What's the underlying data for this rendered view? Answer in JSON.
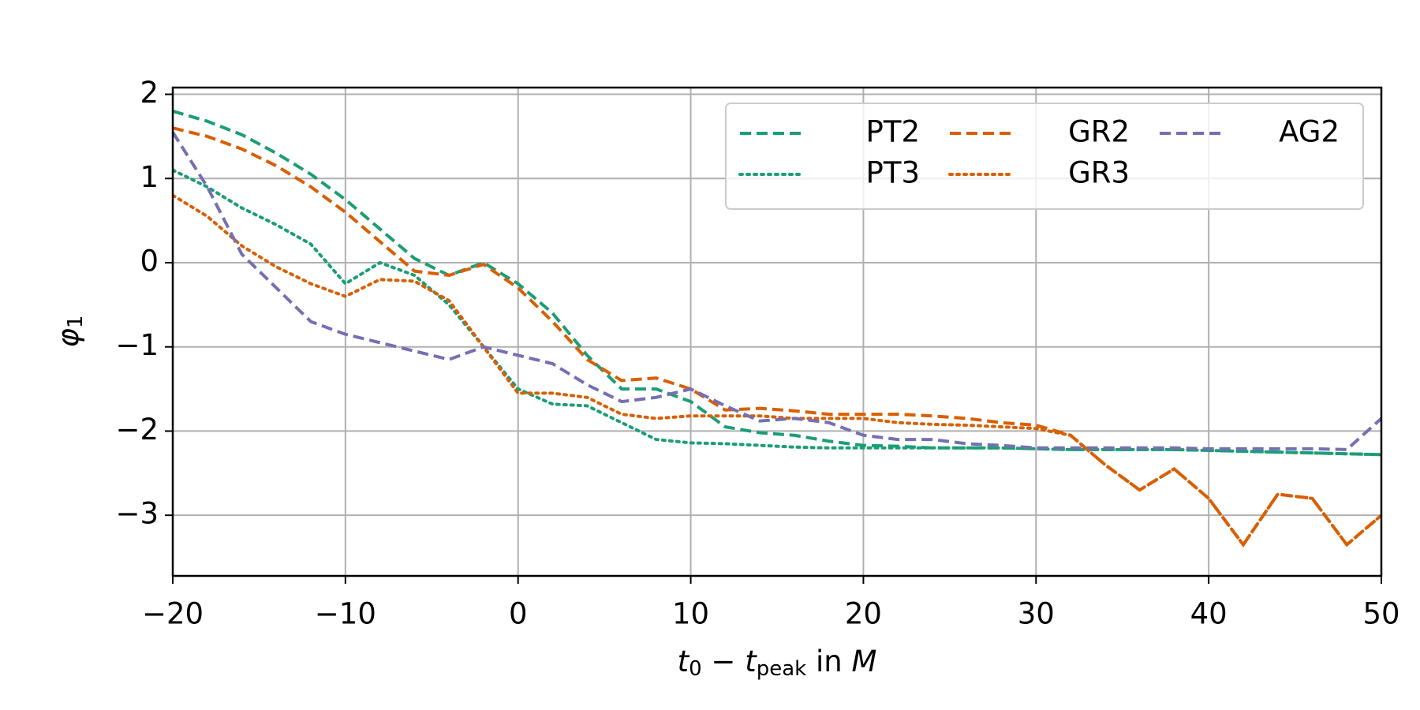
{
  "chart_data": {
    "type": "line",
    "xlabel_parts": [
      "t",
      "0",
      " − ",
      "t",
      "peak",
      " in ",
      "M"
    ],
    "ylabel_parts": [
      "φ",
      "1"
    ],
    "x": [
      -20,
      -18,
      -16,
      -14,
      -12,
      -10,
      -8,
      -6,
      -4,
      -2,
      0,
      2,
      4,
      6,
      8,
      10,
      12,
      14,
      16,
      18,
      20,
      22,
      24,
      26,
      28,
      30,
      32,
      34,
      36,
      38,
      40,
      42,
      44,
      46,
      48,
      50
    ],
    "series": [
      {
        "name": "PT2",
        "color": "#1b9e77",
        "linestyle": "dashed",
        "values": [
          1.8,
          1.68,
          1.52,
          1.3,
          1.05,
          0.75,
          0.4,
          0.05,
          -0.15,
          0.0,
          -0.25,
          -0.6,
          -1.1,
          -1.5,
          -1.5,
          -1.65,
          -1.95,
          -2.02,
          -2.05,
          -2.12,
          -2.17,
          -2.18,
          -2.2,
          -2.2,
          -2.2,
          -2.21,
          -2.22,
          -2.22,
          -2.22,
          -2.22,
          -2.23,
          -2.24,
          -2.25,
          -2.26,
          -2.27,
          -2.28
        ]
      },
      {
        "name": "PT3",
        "color": "#1b9e77",
        "linestyle": "dotted",
        "values": [
          1.1,
          0.9,
          0.65,
          0.45,
          0.22,
          -0.25,
          0.0,
          -0.15,
          -0.5,
          -1.0,
          -1.5,
          -1.68,
          -1.7,
          -1.9,
          -2.1,
          -2.14,
          -2.15,
          -2.17,
          -2.19,
          -2.2,
          -2.2,
          -2.2,
          -2.2,
          -2.2,
          -2.2,
          -2.21,
          -2.22,
          -2.22,
          -2.22,
          -2.22,
          -2.23,
          -2.24,
          -2.25,
          -2.26,
          -2.27,
          -2.28
        ]
      },
      {
        "name": "GR2",
        "color": "#d95f02",
        "linestyle": "dashed",
        "values": [
          1.6,
          1.5,
          1.35,
          1.15,
          0.9,
          0.6,
          0.25,
          -0.1,
          -0.15,
          -0.02,
          -0.3,
          -0.7,
          -1.15,
          -1.4,
          -1.37,
          -1.5,
          -1.75,
          -1.73,
          -1.76,
          -1.8,
          -1.8,
          -1.8,
          -1.82,
          -1.85,
          -1.9,
          -1.93,
          -2.05,
          -2.4,
          -2.7,
          -2.45,
          -2.8,
          -3.35,
          -2.75,
          -2.8,
          -3.35,
          -3.0
        ]
      },
      {
        "name": "GR3",
        "color": "#d95f02",
        "linestyle": "dotted",
        "values": [
          0.8,
          0.55,
          0.2,
          -0.05,
          -0.25,
          -0.4,
          -0.2,
          -0.22,
          -0.45,
          -1.0,
          -1.55,
          -1.55,
          -1.6,
          -1.8,
          -1.85,
          -1.82,
          -1.82,
          -1.82,
          -1.85,
          -1.85,
          -1.85,
          -1.9,
          -1.92,
          -1.93,
          -1.95,
          -1.97,
          -2.05,
          -2.4,
          -2.7,
          -2.45,
          -2.8,
          -3.35,
          -2.75,
          -2.8,
          -3.35,
          -3.0
        ]
      },
      {
        "name": "AG2",
        "color": "#7570b3",
        "linestyle": "dashed",
        "values": [
          1.55,
          0.9,
          0.1,
          -0.3,
          -0.7,
          -0.85,
          -0.95,
          -1.05,
          -1.15,
          -1.0,
          -1.1,
          -1.2,
          -1.45,
          -1.65,
          -1.6,
          -1.5,
          -1.7,
          -1.88,
          -1.85,
          -1.9,
          -2.05,
          -2.1,
          -2.1,
          -2.15,
          -2.17,
          -2.2,
          -2.2,
          -2.2,
          -2.2,
          -2.2,
          -2.21,
          -2.21,
          -2.21,
          -2.21,
          -2.22,
          -1.85
        ]
      }
    ],
    "xlim": [
      -20,
      50
    ],
    "xticks": [
      {
        "value": -20,
        "label": "−20"
      },
      {
        "value": -10,
        "label": "−10"
      },
      0,
      10,
      20,
      30,
      40,
      50
    ],
    "ylim": [
      -3.72,
      2.08
    ],
    "yticks": [
      {
        "value": -3,
        "label": "−3"
      },
      {
        "value": -2,
        "label": "−2"
      },
      {
        "value": -1,
        "label": "−1"
      },
      0,
      1,
      2
    ],
    "grid": true,
    "legend": "upper right",
    "legend_columns": 3
  }
}
